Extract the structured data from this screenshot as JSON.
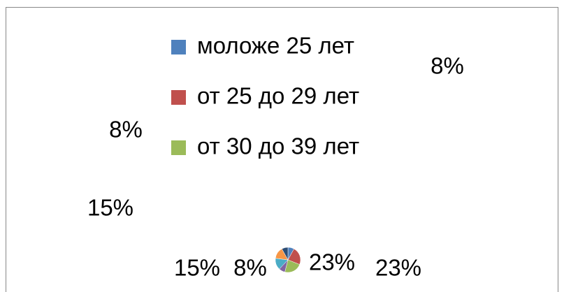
{
  "chart_data": {
    "type": "pie",
    "categories": [
      "моложе 25 лет",
      "от 25 до 29 лет",
      "от 30 до 39 лет",
      null,
      null,
      null,
      null
    ],
    "values": [
      8,
      23,
      23,
      8,
      15,
      15,
      8
    ],
    "value_labels": [
      "8%",
      "23%",
      "23%",
      "8%",
      "15%",
      "15%",
      "8%"
    ],
    "colors": [
      "#4f81bd",
      "#c0504d",
      "#9bbb59",
      "#8064a2",
      "#4bacc6",
      "#f79646",
      "#2c4d75"
    ],
    "legend": "top"
  }
}
